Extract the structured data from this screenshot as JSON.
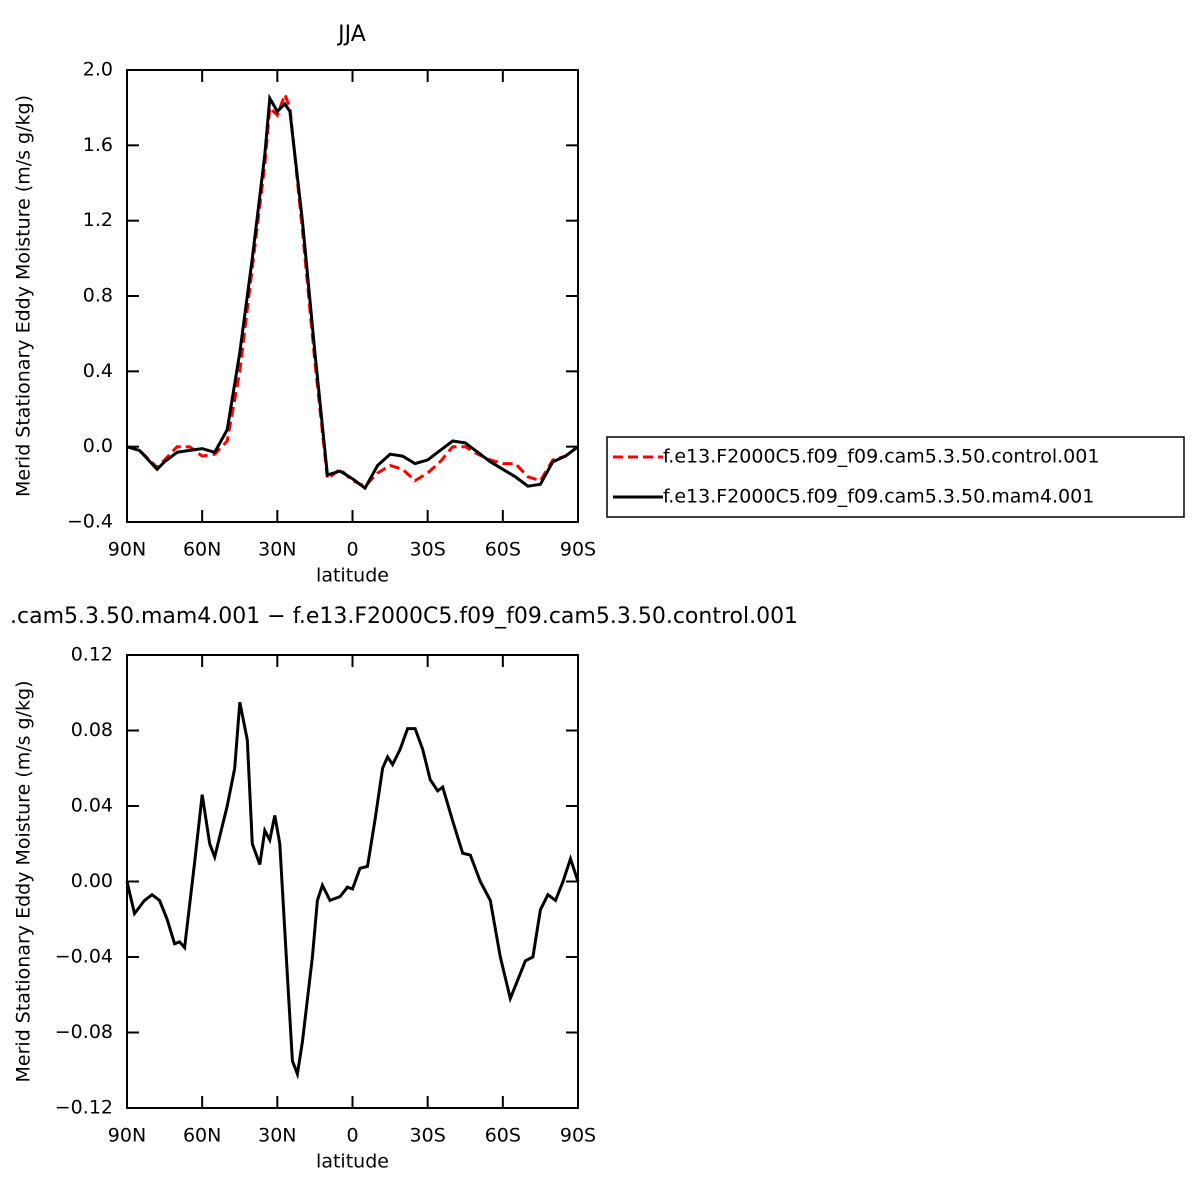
{
  "chart_data": [
    {
      "type": "line",
      "title": "JJA",
      "y_label": "Merid Stationary Eddy Moisture (m/s g/kg)",
      "x_label": "latitude",
      "xlim": [
        90,
        -90
      ],
      "xticks": [
        {
          "value": 90,
          "label": "90N"
        },
        {
          "value": 60,
          "label": "60N"
        },
        {
          "value": 30,
          "label": "30N"
        },
        0,
        {
          "value": -30,
          "label": "30S"
        },
        {
          "value": -60,
          "label": "60S"
        },
        {
          "value": -90,
          "label": "90S"
        }
      ],
      "ylim": [
        -0.4,
        2.0
      ],
      "yticks": [
        {
          "value": 2.0,
          "label": "2.0"
        },
        1.6,
        1.2,
        0.8,
        0.4,
        {
          "value": 0.0,
          "label": "0.0"
        },
        {
          "value": -0.4,
          "label": "−0.4"
        }
      ],
      "legend": "right",
      "x": [
        90,
        85,
        78,
        75,
        70,
        65,
        60,
        55,
        50,
        45,
        40,
        35,
        33,
        30,
        27,
        25,
        20,
        15,
        10,
        5,
        0,
        -5,
        -10,
        -15,
        -20,
        -25,
        -30,
        -35,
        -40,
        -45,
        -50,
        -55,
        -60,
        -65,
        -70,
        -75,
        -80,
        -85,
        -90
      ],
      "series": [
        {
          "name": "f.e13.F2000C5.f09_f09.cam5.3.50.control.001",
          "color": "#ff0000",
          "dashed": true,
          "values": [
            0.0,
            -0.02,
            -0.11,
            -0.07,
            0.0,
            0.0,
            -0.05,
            -0.04,
            0.03,
            0.4,
            0.95,
            1.5,
            1.8,
            1.76,
            1.87,
            1.8,
            1.15,
            0.45,
            -0.17,
            -0.12,
            -0.18,
            -0.21,
            -0.14,
            -0.1,
            -0.12,
            -0.18,
            -0.14,
            -0.08,
            0.0,
            0.0,
            -0.04,
            -0.07,
            -0.09,
            -0.09,
            -0.16,
            -0.18,
            -0.07,
            -0.05,
            0.0
          ]
        },
        {
          "name": "f.e13.F2000C5.f09_f09.cam5.3.50.mam4.001",
          "color": "#000000",
          "dashed": false,
          "values": [
            0.0,
            -0.02,
            -0.12,
            -0.08,
            -0.03,
            -0.02,
            -0.01,
            -0.03,
            0.09,
            0.5,
            1.0,
            1.55,
            1.85,
            1.78,
            1.82,
            1.78,
            1.2,
            0.5,
            -0.15,
            -0.13,
            -0.17,
            -0.22,
            -0.1,
            -0.04,
            -0.05,
            -0.09,
            -0.07,
            -0.02,
            0.03,
            0.02,
            -0.03,
            -0.08,
            -0.12,
            -0.16,
            -0.21,
            -0.2,
            -0.08,
            -0.05,
            0.0
          ]
        }
      ]
    },
    {
      "type": "line",
      "title": ".cam5.3.50.mam4.001 − f.e13.F2000C5.f09_f09.cam5.3.50.control.001",
      "y_label": "Merid Stationary Eddy Moisture (m/s g/kg)",
      "x_label": "latitude",
      "xlim": [
        90,
        -90
      ],
      "xticks": [
        {
          "value": 90,
          "label": "90N"
        },
        {
          "value": 60,
          "label": "60N"
        },
        {
          "value": 30,
          "label": "30N"
        },
        0,
        {
          "value": -30,
          "label": "30S"
        },
        {
          "value": -60,
          "label": "60S"
        },
        {
          "value": -90,
          "label": "90S"
        }
      ],
      "ylim": [
        -0.12,
        0.12
      ],
      "yticks": [
        0.12,
        0.08,
        0.04,
        {
          "value": 0.0,
          "label": "0.00"
        },
        {
          "value": -0.04,
          "label": "−0.04"
        },
        {
          "value": -0.08,
          "label": "−0.08"
        },
        {
          "value": -0.12,
          "label": "−0.12"
        }
      ],
      "x": [
        90,
        87,
        83,
        80,
        77,
        74,
        71,
        69,
        67,
        63,
        60,
        57,
        55,
        50,
        47,
        45,
        42,
        40,
        37,
        35,
        33,
        31,
        29,
        26,
        24,
        22,
        20,
        16,
        14,
        12,
        9,
        5,
        2,
        0,
        -3,
        -6,
        -9,
        -12,
        -14,
        -16,
        -19,
        -22,
        -25,
        -28,
        -31,
        -34,
        -36,
        -40,
        -44,
        -47,
        -51,
        -55,
        -59,
        -63,
        -66,
        -69,
        -72,
        -75,
        -78,
        -81,
        -84,
        -87,
        -90
      ],
      "series": [
        {
          "color": "#000000",
          "dashed": false,
          "values": [
            0.0,
            -0.017,
            -0.01,
            -0.007,
            -0.01,
            -0.02,
            -0.033,
            -0.032,
            -0.035,
            0.01,
            0.046,
            0.02,
            0.013,
            0.04,
            0.06,
            0.095,
            0.075,
            0.02,
            0.009,
            0.027,
            0.022,
            0.035,
            0.02,
            -0.05,
            -0.095,
            -0.102,
            -0.085,
            -0.04,
            -0.01,
            -0.002,
            -0.01,
            -0.008,
            -0.003,
            -0.004,
            0.007,
            0.008,
            0.033,
            0.06,
            0.066,
            0.062,
            0.07,
            0.081,
            0.081,
            0.07,
            0.054,
            0.048,
            0.05,
            0.032,
            0.015,
            0.014,
            0.0,
            -0.01,
            -0.04,
            -0.062,
            -0.052,
            -0.042,
            -0.04,
            -0.015,
            -0.007,
            -0.01,
            0.0,
            0.012,
            0.0
          ]
        }
      ]
    }
  ]
}
